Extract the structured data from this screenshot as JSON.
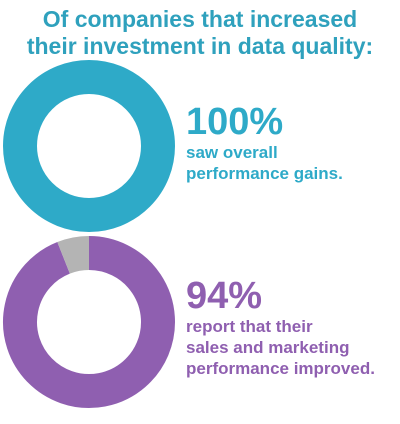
{
  "title": {
    "line1": "Of companies that increased",
    "line2": "their investment in data quality:"
  },
  "colors": {
    "title": "#2fa1bd",
    "teal": "#2eaac8",
    "purple": "#8f5fb0",
    "remainder": "#b4b4b4"
  },
  "chart_data": [
    {
      "type": "pie",
      "values": [
        100
      ],
      "value_label": "100%",
      "caption": "saw overall\nperformance gains."
    },
    {
      "type": "pie",
      "values": [
        94,
        6
      ],
      "value_label": "94%",
      "caption": "report that their\nsales and marketing\nperformance improved."
    }
  ]
}
